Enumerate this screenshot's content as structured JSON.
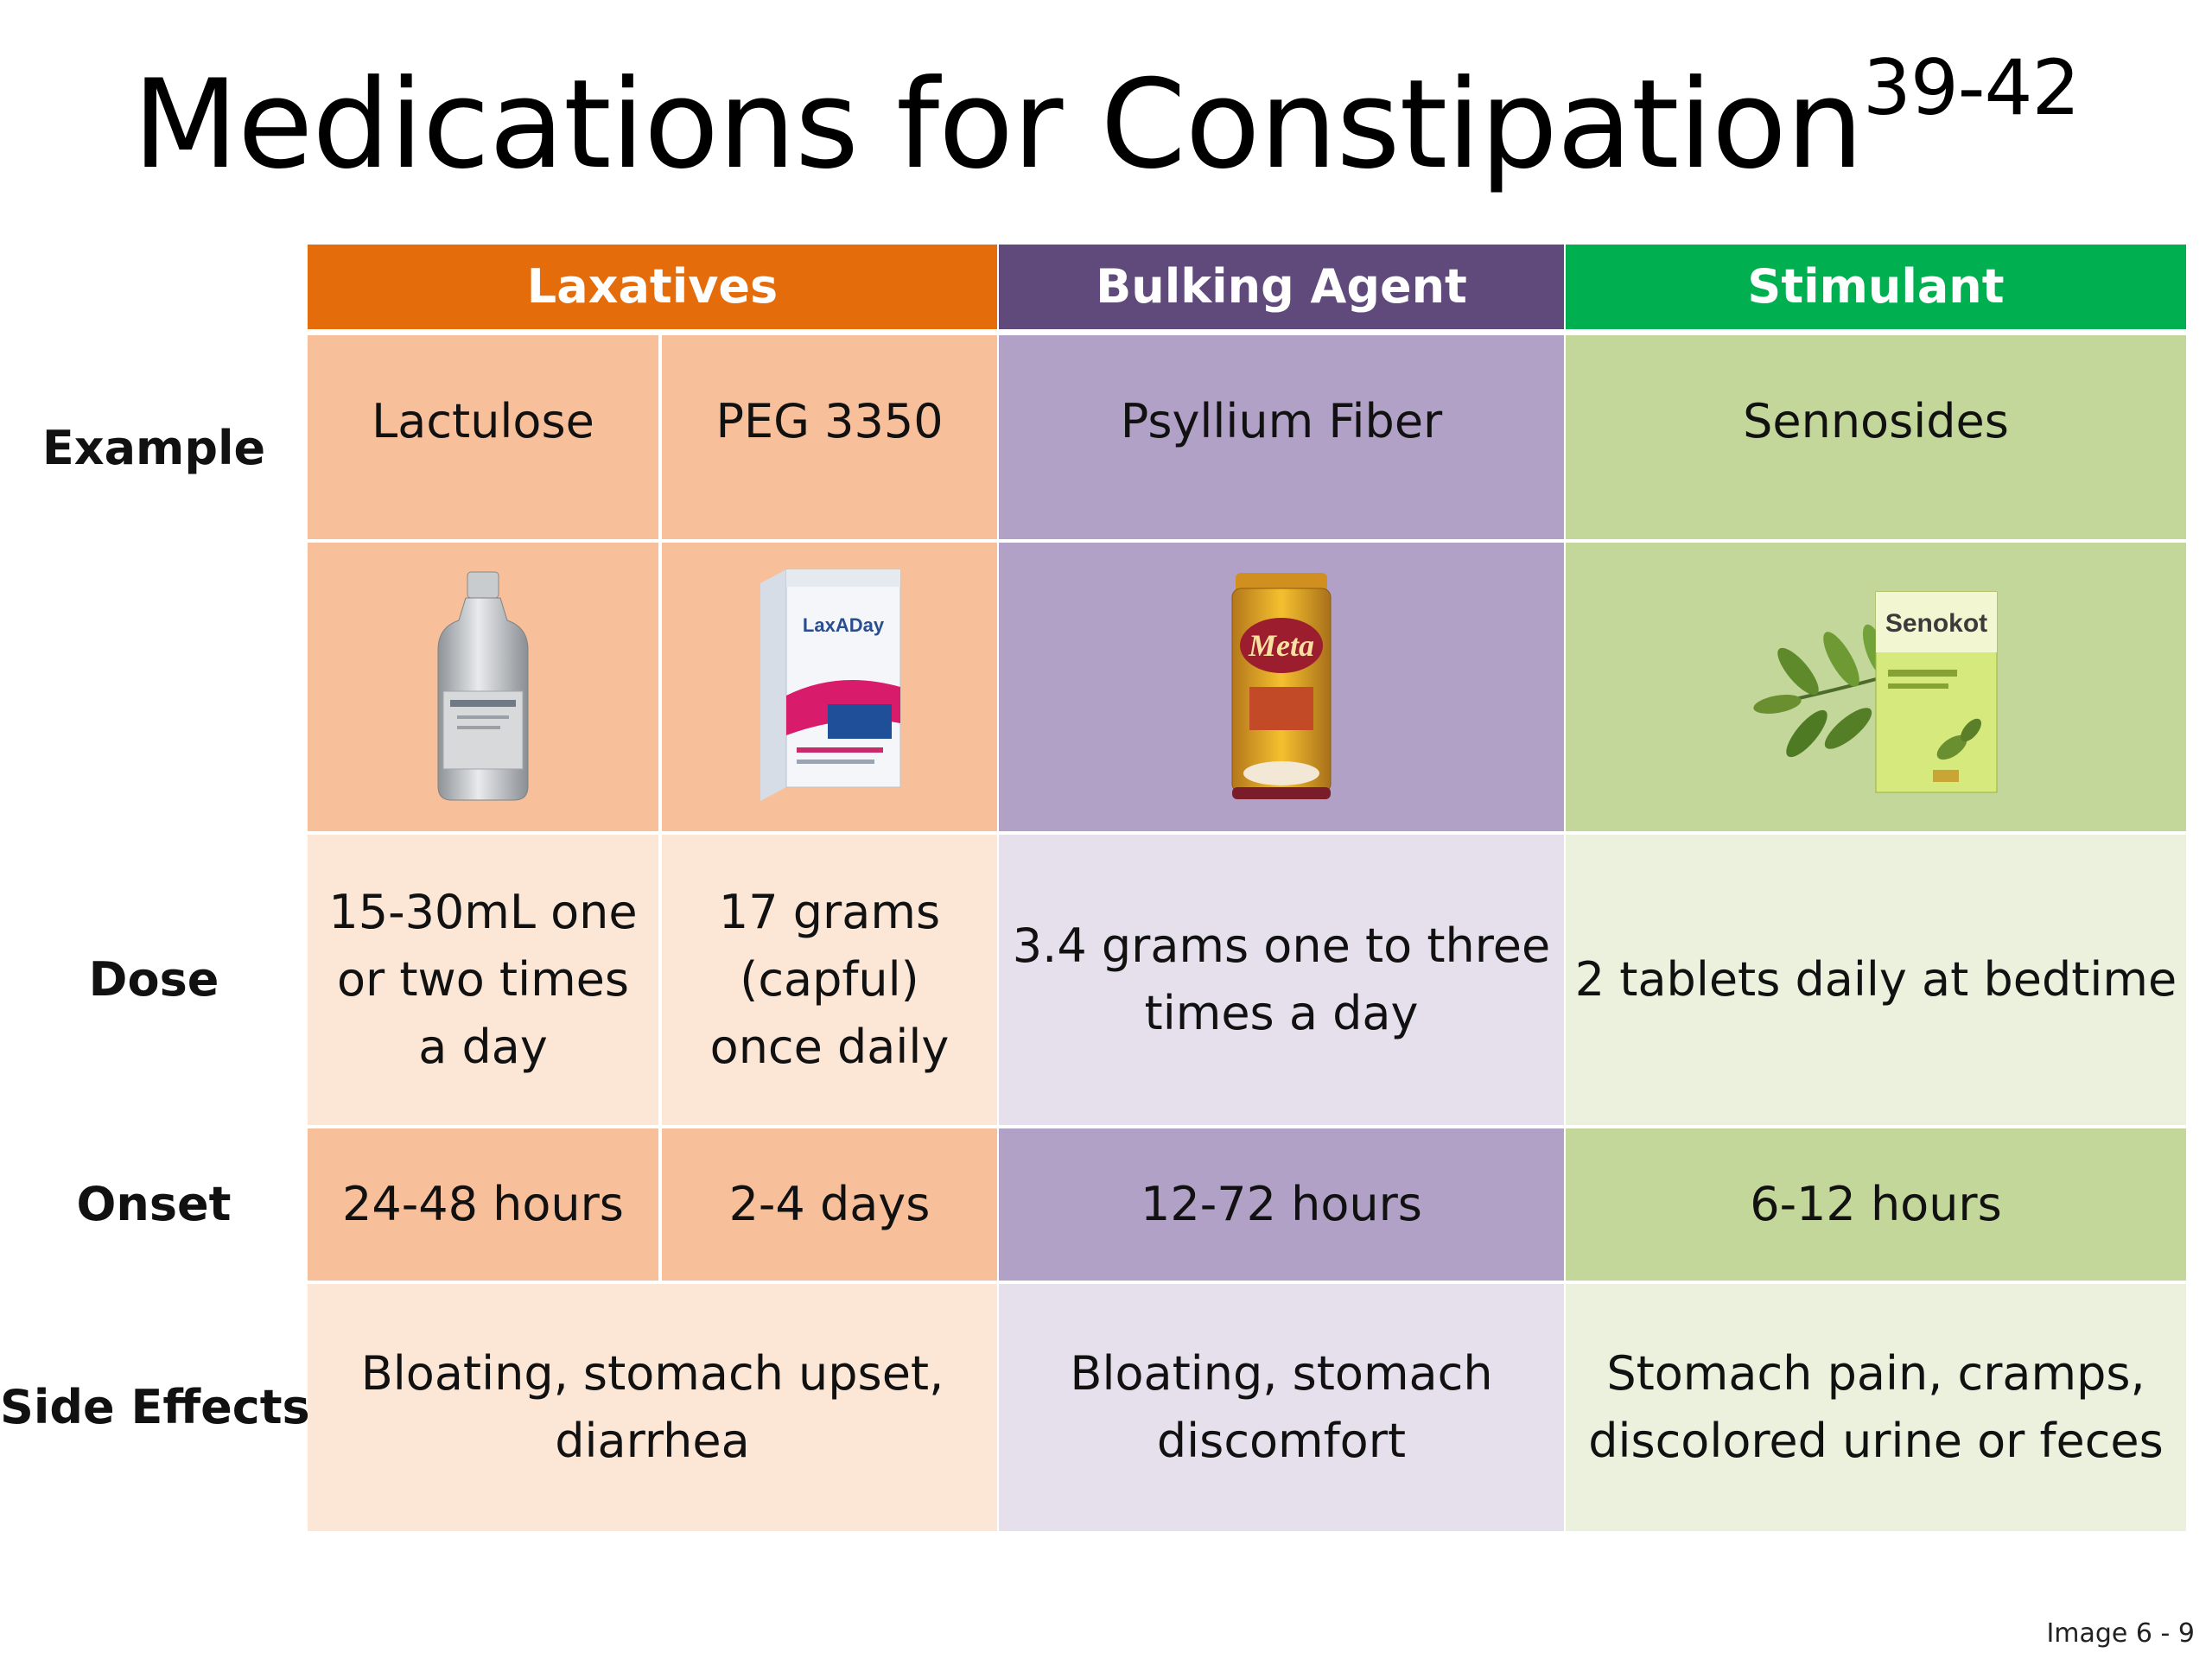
{
  "title": {
    "main": "Medications for Constipation",
    "superscript": "39-42"
  },
  "headers": {
    "laxatives": "Laxatives",
    "bulking": "Bulking Agent",
    "stimulant": "Stimulant"
  },
  "row_labels": {
    "example": "Example",
    "dose": "Dose",
    "onset": "Onset",
    "side_effects": "Side Effects"
  },
  "examples": {
    "lactulose": "Lactulose",
    "peg": "PEG 3350",
    "psyllium": "Psyllium Fiber",
    "senna": "Sennosides"
  },
  "product_labels": {
    "peg_brand": "LaxADay",
    "psyllium_brand": "Meta",
    "senna_brand": "Senokot"
  },
  "dose": {
    "lactulose": [
      "15-30mL one",
      "or two times",
      "a day"
    ],
    "peg": [
      "17 grams",
      "(capful)",
      "once daily"
    ],
    "psyllium": [
      "3.4 grams one to three",
      "times a day"
    ],
    "senna": [
      "2 tablets daily at bedtime"
    ]
  },
  "onset": {
    "lactulose": "24-48 hours",
    "peg": "2-4 days",
    "psyllium": "12-72 hours",
    "senna": "6-12 hours"
  },
  "side_effects": {
    "laxatives": [
      "Bloating, stomach upset,",
      "diarrhea"
    ],
    "bulking": [
      "Bloating, stomach",
      "discomfort"
    ],
    "stimulant": [
      "Stomach pain, cramps,",
      "discolored urine or feces"
    ]
  },
  "footer": "Image 6 - 9",
  "colors": {
    "laxatives_header": "#e46c0a",
    "bulking_header": "#604a7b",
    "stimulant_header": "#00b050",
    "laxatives_dark": "#f8c09a",
    "laxatives_light": "#fce7d7",
    "bulking_dark": "#b2a1c7",
    "bulking_light": "#e5e0ec",
    "stimulant_dark": "#c3d79b",
    "stimulant_light": "#ebf1dd"
  }
}
